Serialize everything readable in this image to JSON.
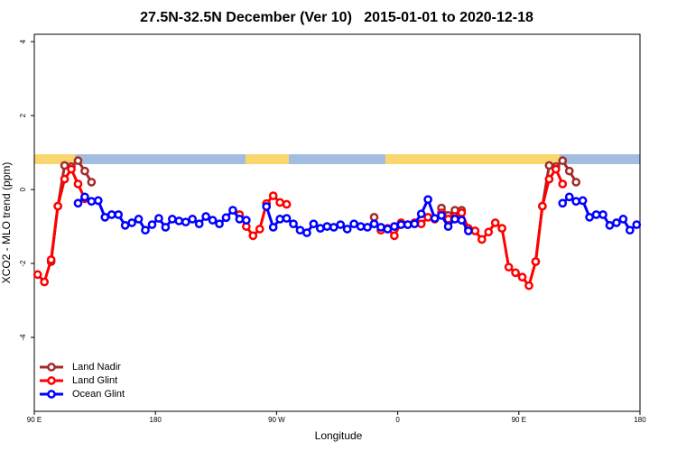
{
  "chart_data": {
    "type": "line",
    "title": "27.5N-32.5N December (Ver 10)   2015-01-01 to 2020-12-18",
    "x_label": "Longitude",
    "y_label": "XCO2 - MLO trend (ppm)",
    "xlim": [
      90,
      540
    ],
    "xticks": [
      {
        "value": 90,
        "label": "90 E"
      },
      {
        "value": 180,
        "label": "180"
      },
      {
        "value": 270,
        "label": "90 W"
      },
      {
        "value": 360,
        "label": "0"
      },
      {
        "value": 450,
        "label": "90 E"
      },
      {
        "value": 540,
        "label": "180"
      }
    ],
    "ylim": [
      -6,
      4.2
    ],
    "yticks": [
      -4,
      -2,
      0,
      2,
      4
    ],
    "legend": "bottom-left",
    "x": [
      92.5,
      97.5,
      102.5,
      107.5,
      112.5,
      117.5,
      122.5,
      127.5,
      132.5,
      137.5,
      142.5,
      147.5,
      152.5,
      157.5,
      162.5,
      167.5,
      172.5,
      177.5,
      182.5,
      187.5,
      192.5,
      197.5,
      202.5,
      207.5,
      212.5,
      217.5,
      222.5,
      227.5,
      232.5,
      237.5,
      242.5,
      247.5,
      252.5,
      257.5,
      262.5,
      267.5,
      272.5,
      277.5,
      282.5,
      287.5,
      292.5,
      297.5,
      302.5,
      307.5,
      312.5,
      317.5,
      322.5,
      327.5,
      332.5,
      337.5,
      342.5,
      347.5,
      352.5,
      357.5,
      362.5,
      367.5,
      372.5,
      377.5,
      382.5,
      387.5,
      392.5,
      397.5,
      402.5,
      407.5,
      412.5,
      417.5,
      422.5,
      427.5,
      432.5,
      437.5,
      442.5,
      447.5,
      452.5,
      457.5,
      462.5,
      467.5,
      472.5,
      477.5,
      482.5,
      487.5,
      492.5,
      497.5,
      502.5,
      507.5,
      512.5,
      517.5,
      522.5,
      527.5,
      532.5,
      537.5
    ],
    "series": [
      {
        "name": "Land Nadir",
        "color": "#a52a2a",
        "values": [
          null,
          null,
          -1.95,
          -0.45,
          0.65,
          0.62,
          0.78,
          0.5,
          0.2,
          null,
          null,
          null,
          null,
          null,
          null,
          null,
          null,
          null,
          null,
          null,
          null,
          null,
          null,
          null,
          null,
          null,
          null,
          null,
          null,
          null,
          null,
          null,
          null,
          null,
          null,
          null,
          null,
          null,
          null,
          null,
          null,
          null,
          null,
          null,
          null,
          null,
          null,
          null,
          null,
          null,
          -0.75,
          null,
          null,
          null,
          null,
          null,
          null,
          null,
          null,
          null,
          -0.5,
          -0.7,
          -0.56,
          -0.56,
          null,
          null,
          null,
          null,
          null,
          null,
          null,
          null,
          null,
          null,
          -1.95,
          -0.45,
          0.65,
          0.62,
          0.78,
          0.5,
          0.2,
          null,
          null,
          null,
          null,
          null,
          null,
          null,
          null,
          null
        ]
      },
      {
        "name": "Land Glint",
        "color": "#ff0000",
        "values": [
          -2.3,
          -2.5,
          -1.9,
          -0.45,
          0.28,
          0.55,
          0.15,
          -0.25,
          null,
          null,
          null,
          null,
          null,
          null,
          null,
          null,
          null,
          null,
          null,
          null,
          null,
          null,
          null,
          null,
          null,
          null,
          null,
          null,
          null,
          null,
          -0.68,
          -1.0,
          -1.25,
          -1.07,
          -0.38,
          -0.17,
          -0.35,
          -0.4,
          null,
          null,
          null,
          null,
          null,
          null,
          null,
          null,
          null,
          null,
          null,
          null,
          null,
          -1.1,
          -1.05,
          -1.25,
          -0.9,
          -0.95,
          -0.9,
          -0.93,
          -0.75,
          -0.8,
          -0.63,
          -0.8,
          -0.73,
          -0.63,
          -1.05,
          -1.12,
          -1.35,
          -1.15,
          -0.9,
          -1.05,
          -2.1,
          -2.25,
          -2.37,
          -2.6,
          -1.95,
          -0.45,
          0.28,
          0.55,
          0.15,
          null,
          null,
          null,
          null,
          null,
          null,
          null,
          null,
          null,
          null,
          null
        ]
      },
      {
        "name": "Ocean Glint",
        "color": "#0000ff",
        "values": [
          null,
          null,
          null,
          null,
          null,
          null,
          -0.37,
          -0.2,
          -0.32,
          -0.3,
          -0.75,
          -0.68,
          -0.68,
          -0.97,
          -0.9,
          -0.8,
          -1.1,
          -0.95,
          -0.78,
          -1.02,
          -0.8,
          -0.85,
          -0.88,
          -0.8,
          -0.93,
          -0.73,
          -0.83,
          -0.93,
          -0.76,
          -0.56,
          -0.8,
          -0.83,
          null,
          null,
          -0.46,
          -1.02,
          -0.8,
          -0.78,
          -0.93,
          -1.1,
          -1.17,
          -0.93,
          -1.05,
          -1.0,
          -1.02,
          -0.95,
          -1.07,
          -0.93,
          -1.0,
          -1.02,
          -0.93,
          -1.02,
          -1.07,
          -1.0,
          -0.95,
          -0.95,
          -0.93,
          -0.66,
          -0.27,
          -0.78,
          -0.7,
          -1.0,
          -0.8,
          -0.83,
          -1.12,
          null,
          null,
          null,
          null,
          null,
          null,
          null,
          null,
          null,
          null,
          null,
          null,
          null,
          -0.37,
          -0.2,
          -0.32,
          -0.3,
          -0.75,
          -0.68,
          -0.68,
          -0.97,
          -0.9,
          -0.8,
          -1.1,
          -0.95
        ]
      }
    ]
  }
}
